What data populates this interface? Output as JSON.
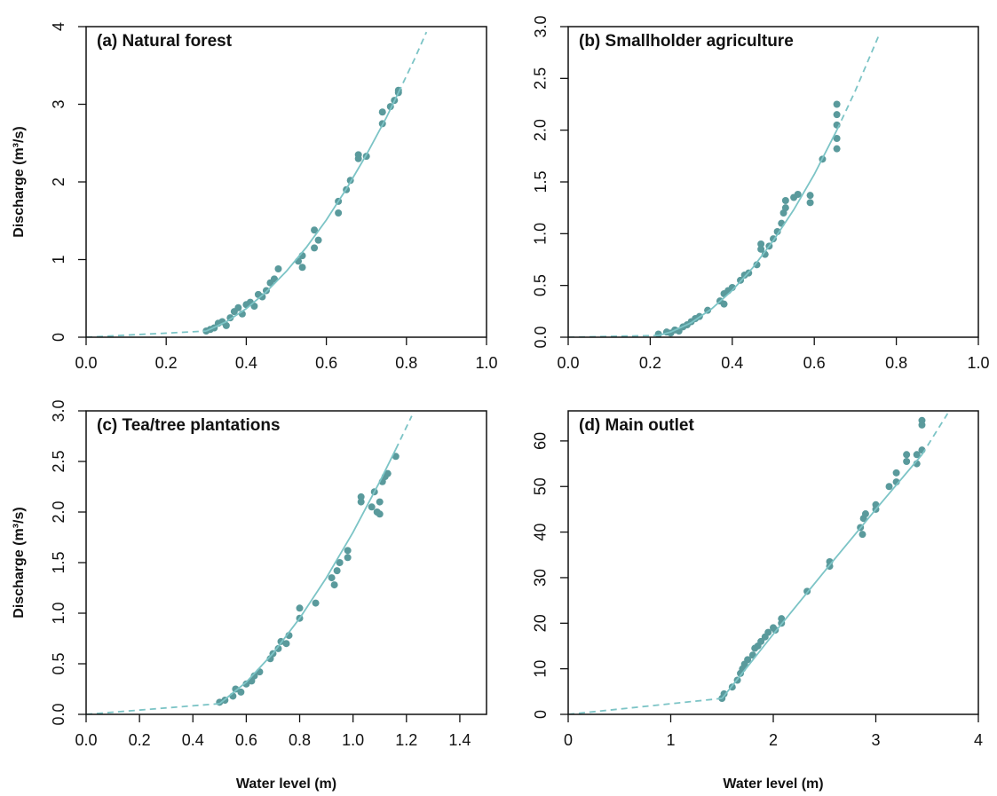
{
  "chart_data": [
    {
      "type": "scatter",
      "title": "(a) Natural forest",
      "y_label": "Discharge (m³/s)",
      "xlim": [
        0,
        1
      ],
      "ylim": [
        0,
        4
      ],
      "xticks": [
        {
          "value": 0,
          "label": "0.0"
        },
        0.2,
        0.4,
        0.6,
        0.8,
        {
          "value": 1,
          "label": "1.0"
        }
      ],
      "yticks": [
        0,
        1,
        2,
        3,
        4
      ],
      "series": [
        {
          "mode": "points",
          "color": "#5a9a9c",
          "x": [
            0.3,
            0.31,
            0.32,
            0.33,
            0.34,
            0.35,
            0.36,
            0.37,
            0.38,
            0.39,
            0.4,
            0.41,
            0.42,
            0.43,
            0.44,
            0.45,
            0.46,
            0.47,
            0.48,
            0.53,
            0.54,
            0.54,
            0.57,
            0.57,
            0.58,
            0.63,
            0.63,
            0.65,
            0.66,
            0.68,
            0.68,
            0.7,
            0.74,
            0.74,
            0.76,
            0.77,
            0.78,
            0.78
          ],
          "values": [
            0.08,
            0.1,
            0.12,
            0.18,
            0.2,
            0.15,
            0.25,
            0.33,
            0.38,
            0.3,
            0.42,
            0.45,
            0.4,
            0.55,
            0.52,
            0.6,
            0.7,
            0.75,
            0.88,
            0.98,
            0.9,
            1.05,
            1.15,
            1.38,
            1.25,
            1.6,
            1.75,
            1.9,
            2.02,
            2.3,
            2.35,
            2.33,
            2.75,
            2.9,
            2.97,
            3.05,
            3.15,
            3.18
          ]
        },
        {
          "mode": "line",
          "dash": true,
          "color": "#7cc4c6",
          "x": [
            0,
            0.3
          ],
          "values": [
            0,
            0.079
          ]
        },
        {
          "mode": "line",
          "dash": false,
          "color": "#7cc4c6",
          "x": [
            0.3,
            0.35,
            0.4,
            0.45,
            0.5,
            0.55,
            0.6,
            0.65,
            0.7,
            0.75,
            0.78
          ],
          "values": [
            0.079,
            0.199,
            0.368,
            0.584,
            0.848,
            1.157,
            1.51,
            1.91,
            2.35,
            2.83,
            3.15
          ]
        },
        {
          "mode": "line",
          "dash": true,
          "color": "#7cc4c6",
          "x": [
            0.78,
            0.82,
            0.85
          ],
          "values": [
            3.15,
            3.58,
            3.93
          ]
        }
      ]
    },
    {
      "type": "scatter",
      "title": "(b) Smallholder agriculture",
      "xlim": [
        0,
        1
      ],
      "ylim": [
        0,
        3
      ],
      "xticks": [
        {
          "value": 0,
          "label": "0.0"
        },
        0.2,
        0.4,
        0.6,
        0.8,
        {
          "value": 1,
          "label": "1.0"
        }
      ],
      "yticks": [
        {
          "value": 0,
          "label": "0.0"
        },
        0.5,
        {
          "value": 1,
          "label": "1.0"
        },
        1.5,
        {
          "value": 2,
          "label": "2.0"
        },
        2.5,
        {
          "value": 3,
          "label": "3.0"
        }
      ],
      "series": [
        {
          "mode": "points",
          "color": "#5a9a9c",
          "x": [
            0.22,
            0.24,
            0.25,
            0.26,
            0.27,
            0.28,
            0.29,
            0.3,
            0.31,
            0.32,
            0.34,
            0.37,
            0.38,
            0.38,
            0.39,
            0.4,
            0.42,
            0.43,
            0.44,
            0.46,
            0.47,
            0.47,
            0.48,
            0.49,
            0.5,
            0.51,
            0.52,
            0.525,
            0.53,
            0.53,
            0.55,
            0.56,
            0.59,
            0.59,
            0.62,
            0.655,
            0.655,
            0.655,
            0.655,
            0.655
          ],
          "values": [
            0.03,
            0.05,
            0.04,
            0.07,
            0.06,
            0.1,
            0.12,
            0.15,
            0.18,
            0.2,
            0.26,
            0.35,
            0.42,
            0.32,
            0.45,
            0.48,
            0.55,
            0.6,
            0.62,
            0.7,
            0.85,
            0.9,
            0.8,
            0.88,
            0.95,
            1.02,
            1.1,
            1.2,
            1.25,
            1.32,
            1.35,
            1.38,
            1.3,
            1.37,
            1.72,
            1.82,
            1.92,
            2.05,
            2.15,
            2.25
          ]
        },
        {
          "mode": "line",
          "dash": true,
          "color": "#7cc4c6",
          "x": [
            0,
            0.22
          ],
          "values": [
            0,
            0.017
          ]
        },
        {
          "mode": "line",
          "dash": false,
          "color": "#7cc4c6",
          "x": [
            0.22,
            0.25,
            0.3,
            0.35,
            0.4,
            0.45,
            0.5,
            0.55,
            0.6,
            0.655
          ],
          "values": [
            0.017,
            0.05,
            0.14,
            0.275,
            0.452,
            0.671,
            0.932,
            1.232,
            1.573,
            2.0
          ]
        },
        {
          "mode": "line",
          "dash": true,
          "color": "#7cc4c6",
          "x": [
            0.655,
            0.7,
            0.76
          ],
          "values": [
            2.0,
            2.38,
            2.94
          ]
        }
      ]
    },
    {
      "type": "scatter",
      "title": "(c) Tea/tree plantations",
      "x_label": "Water level (m)",
      "y_label": "Discharge (m³/s)",
      "xlim": [
        0,
        1.5
      ],
      "ylim": [
        0,
        3
      ],
      "xticks": [
        {
          "value": 0,
          "label": "0.0"
        },
        0.2,
        0.4,
        0.6,
        0.8,
        {
          "value": 1,
          "label": "1.0"
        },
        1.2,
        1.4
      ],
      "yticks": [
        {
          "value": 0,
          "label": "0.0"
        },
        0.5,
        {
          "value": 1,
          "label": "1.0"
        },
        1.5,
        {
          "value": 2,
          "label": "2.0"
        },
        2.5,
        {
          "value": 3,
          "label": "3.0"
        }
      ],
      "series": [
        {
          "mode": "points",
          "color": "#5a9a9c",
          "x": [
            0.5,
            0.52,
            0.55,
            0.56,
            0.58,
            0.6,
            0.62,
            0.63,
            0.65,
            0.69,
            0.7,
            0.72,
            0.73,
            0.75,
            0.76,
            0.8,
            0.8,
            0.86,
            0.92,
            0.93,
            0.94,
            0.95,
            0.98,
            0.98,
            1.03,
            1.03,
            1.07,
            1.08,
            1.09,
            1.1,
            1.1,
            1.11,
            1.12,
            1.13,
            1.16
          ],
          "values": [
            0.12,
            0.14,
            0.18,
            0.25,
            0.22,
            0.3,
            0.33,
            0.38,
            0.42,
            0.55,
            0.6,
            0.65,
            0.72,
            0.7,
            0.78,
            0.95,
            1.05,
            1.1,
            1.35,
            1.28,
            1.42,
            1.5,
            1.55,
            1.62,
            2.1,
            2.15,
            2.05,
            2.2,
            2.0,
            2.1,
            1.98,
            2.3,
            2.35,
            2.38,
            2.55
          ]
        },
        {
          "mode": "line",
          "dash": true,
          "color": "#7cc4c6",
          "x": [
            0,
            0.5
          ],
          "values": [
            0,
            0.106
          ]
        },
        {
          "mode": "line",
          "dash": false,
          "color": "#7cc4c6",
          "x": [
            0.5,
            0.6,
            0.7,
            0.8,
            0.9,
            1.0,
            1.1,
            1.16
          ],
          "values": [
            0.106,
            0.318,
            0.603,
            0.95,
            1.35,
            1.8,
            2.3,
            2.62
          ]
        },
        {
          "mode": "line",
          "dash": true,
          "color": "#7cc4c6",
          "x": [
            1.16,
            1.22
          ],
          "values": [
            2.62,
            2.95
          ]
        }
      ]
    },
    {
      "type": "scatter",
      "title": "(d) Main outlet",
      "x_label": "Water level (m)",
      "xlim": [
        0,
        4
      ],
      "ylim": [
        0,
        66.6
      ],
      "xticks": [
        0,
        1,
        2,
        3,
        4
      ],
      "yticks": [
        0,
        10,
        20,
        30,
        40,
        50,
        60
      ],
      "series": [
        {
          "mode": "points",
          "color": "#5a9a9c",
          "x": [
            1.5,
            1.52,
            1.6,
            1.65,
            1.68,
            1.7,
            1.72,
            1.75,
            1.8,
            1.82,
            1.85,
            1.88,
            1.92,
            1.95,
            2.0,
            2.02,
            2.08,
            2.08,
            2.33,
            2.55,
            2.55,
            2.85,
            2.87,
            2.88,
            2.9,
            3.0,
            3.0,
            3.13,
            3.2,
            3.2,
            3.3,
            3.3,
            3.4,
            3.4,
            3.45,
            3.45,
            3.45
          ],
          "values": [
            3.5,
            4.5,
            6,
            7.5,
            9,
            10,
            11,
            12,
            13,
            14.5,
            15,
            16,
            17,
            18,
            19,
            18.5,
            20,
            21,
            27,
            32.5,
            33.5,
            41,
            39.5,
            43,
            44,
            45,
            46,
            50,
            51,
            53,
            55.5,
            57,
            55,
            57,
            58,
            63.5,
            64.5
          ]
        },
        {
          "mode": "line",
          "dash": true,
          "color": "#7cc4c6",
          "x": [
            0,
            1.5
          ],
          "values": [
            0,
            3.5
          ]
        },
        {
          "mode": "line",
          "dash": false,
          "color": "#7cc4c6",
          "x": [
            1.5,
            1.75,
            2.0,
            2.5,
            3.0,
            3.45
          ],
          "values": [
            3.5,
            10.5,
            17.6,
            31.4,
            45.0,
            57
          ]
        },
        {
          "mode": "line",
          "dash": true,
          "color": "#7cc4c6",
          "x": [
            3.45,
            3.7
          ],
          "values": [
            57,
            66
          ]
        }
      ]
    }
  ]
}
